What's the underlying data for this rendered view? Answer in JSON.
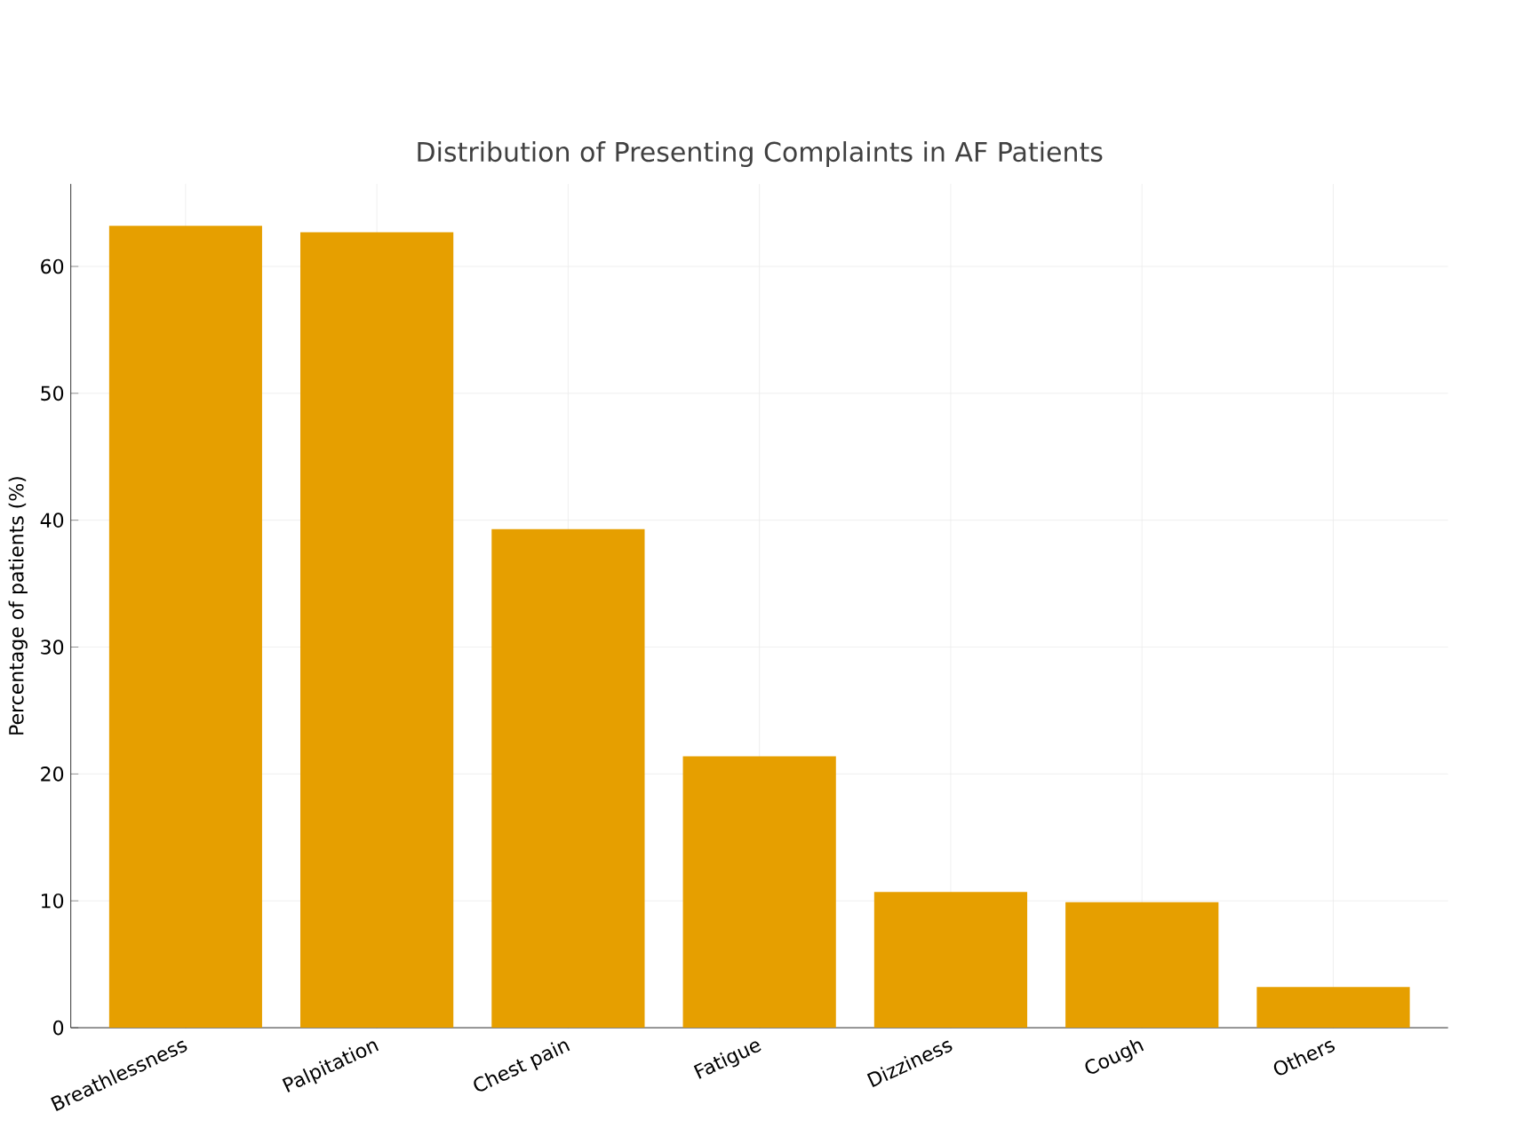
{
  "chart_data": {
    "type": "bar",
    "title": "Distribution of Presenting Complaints in AF Patients",
    "ylabel": "Percentage of patients (%)",
    "categories": [
      "Breathlessness",
      "Palpitation",
      "Chest pain",
      "Fatigue",
      "Dizziness",
      "Cough",
      "Others"
    ],
    "values": [
      63.2,
      62.7,
      39.3,
      21.4,
      10.7,
      9.9,
      3.2
    ],
    "color": "#e69f00",
    "ylim": [
      0,
      66.5
    ],
    "yticks": [
      0,
      10,
      20,
      30,
      40,
      50,
      60
    ],
    "grid": true
  }
}
